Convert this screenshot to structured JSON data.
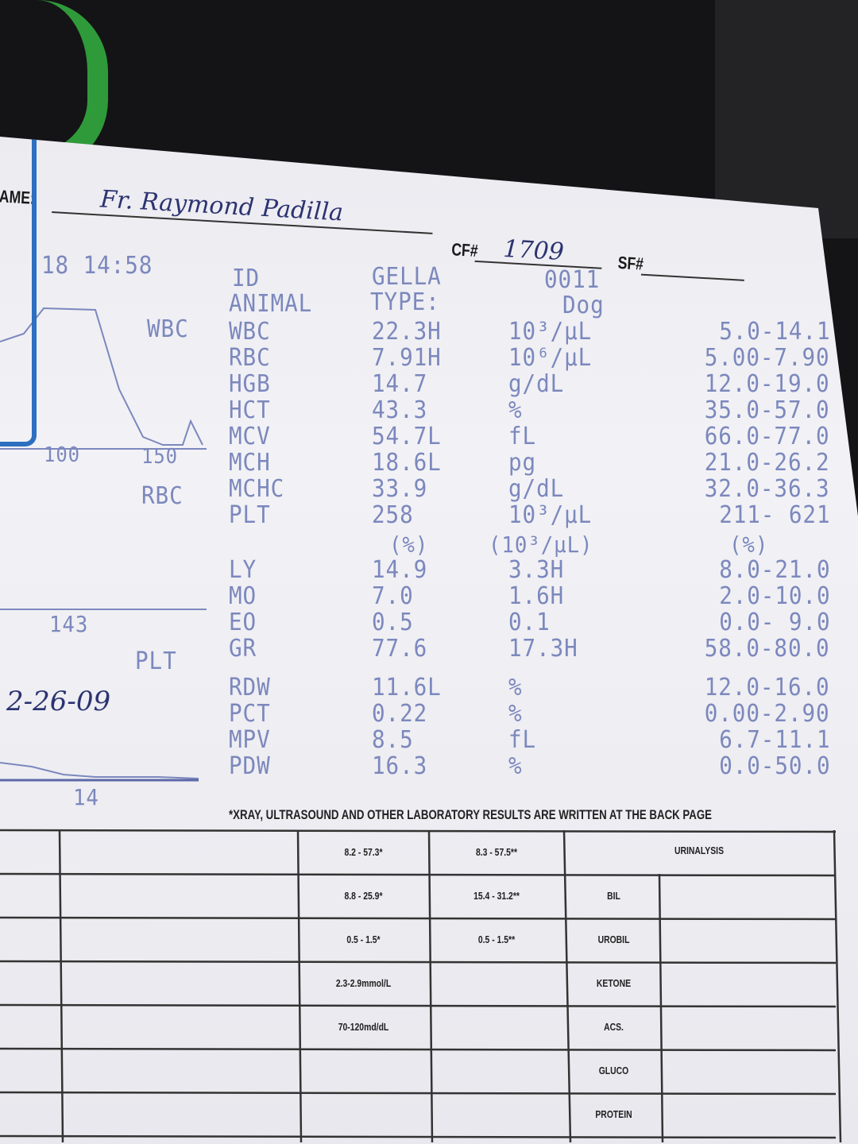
{
  "form": {
    "name_label": "NAME:",
    "name_value": "Fr. Raymond Padilla",
    "cf_label": "CF#",
    "cf_value": "1709",
    "sf_label": "SF#",
    "sf_value": "",
    "handwritten_date": "2-26-09",
    "footer_note": "*XRAY, ULTRASOUND AND OTHER LABORATORY RESULTS ARE WRITTEN AT THE BACK PAGE"
  },
  "printout": {
    "datetime": "18 14:58",
    "id_label": "ID",
    "id_value": "GELLA",
    "id_number": "0011",
    "animal_label": "ANIMAL",
    "type_label": "TYPE:",
    "type_value": "Dog",
    "hist_wbc_label": "WBC",
    "hist_rbc_label": "RBC",
    "hist_plt_label": "PLT",
    "hist_ticks_wbc": [
      "100",
      "150"
    ],
    "hist_tick_rbc": "143",
    "hist_tick_plt": "14",
    "diff_header": [
      "(%)",
      "(10³/µL)",
      "(%)"
    ],
    "rows_a": [
      {
        "param": "WBC",
        "value": "22.3H",
        "unit": "10³/µL",
        "range": "5.0-14.1"
      },
      {
        "param": "RBC",
        "value": "7.91H",
        "unit": "10⁶/µL",
        "range": "5.00-7.90"
      },
      {
        "param": "HGB",
        "value": "14.7",
        "unit": "g/dL",
        "range": "12.0-19.0"
      },
      {
        "param": "HCT",
        "value": "43.3",
        "unit": "%",
        "range": "35.0-57.0"
      },
      {
        "param": "MCV",
        "value": "54.7L",
        "unit": "fL",
        "range": "66.0-77.0"
      },
      {
        "param": "MCH",
        "value": "18.6L",
        "unit": "pg",
        "range": "21.0-26.2"
      },
      {
        "param": "MCHC",
        "value": "33.9",
        "unit": "g/dL",
        "range": "32.0-36.3"
      },
      {
        "param": "PLT",
        "value": "258",
        "unit": "10³/µL",
        "range": "211- 621"
      }
    ],
    "rows_b": [
      {
        "param": "LY",
        "value": "14.9",
        "unit": "3.3H",
        "range": "8.0-21.0"
      },
      {
        "param": "MO",
        "value": "7.0",
        "unit": "1.6H",
        "range": "2.0-10.0"
      },
      {
        "param": "EO",
        "value": "0.5",
        "unit": "0.1",
        "range": "0.0- 9.0"
      },
      {
        "param": "GR",
        "value": "77.6",
        "unit": "17.3H",
        "range": "58.0-80.0"
      }
    ],
    "rows_c": [
      {
        "param": "RDW",
        "value": "11.6L",
        "unit": "%",
        "range": "12.0-16.0"
      },
      {
        "param": "PCT",
        "value": "0.22",
        "unit": "%",
        "range": "0.00-2.90"
      },
      {
        "param": "MPV",
        "value": "8.5",
        "unit": "fL",
        "range": "6.7-11.1"
      },
      {
        "param": "PDW",
        "value": "16.3",
        "unit": "%",
        "range": "0.0-50.0"
      }
    ]
  },
  "table": {
    "col3": [
      "8.2 - 57.3*",
      "8.8 - 25.9*",
      "0.5 - 1.5*",
      "2.3-2.9mmol/L",
      "70-120md/dL"
    ],
    "col4": [
      "8.3 - 57.5**",
      "15.4 - 31.2**",
      "0.5 - 1.5**"
    ],
    "urinalysis_header": "URINALYSIS",
    "urinalysis_items": [
      "BIL",
      "UROBIL",
      "KETONE",
      "ACS.",
      "GLUCO",
      "PROTEIN"
    ]
  },
  "colors": {
    "print_ink": "#7c88bd",
    "handwriting": "#2c3370",
    "clip": "#2d6fc0",
    "mug": "#2f9a3a"
  }
}
